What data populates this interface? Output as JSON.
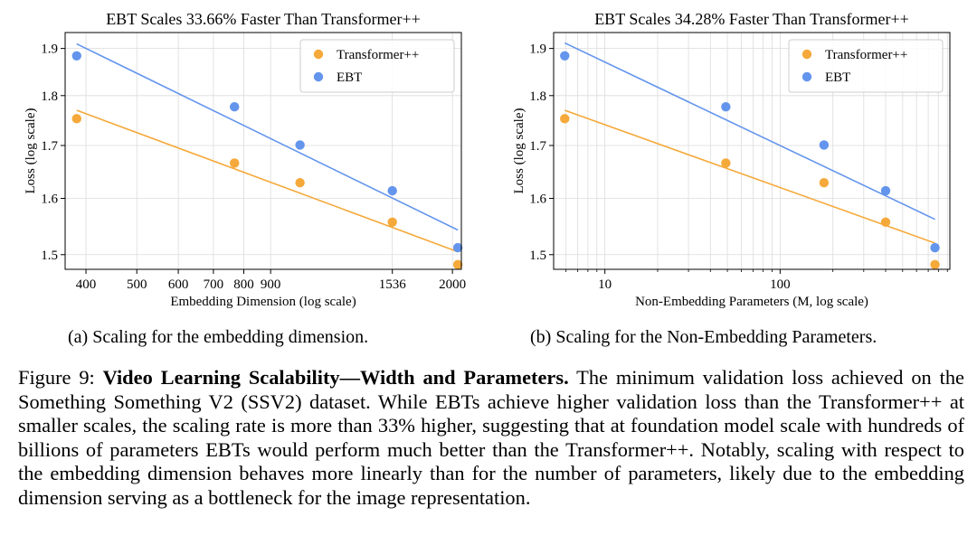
{
  "chart_data": [
    {
      "type": "scatter",
      "title": "EBT Scales 33.66% Faster Than Transformer++",
      "xlabel": "Embedding Dimension (log scale)",
      "ylabel": "Loss (log scale)",
      "xscale": "log",
      "yscale": "log",
      "xlim": [
        365,
        2080
      ],
      "ylim": [
        1.475,
        1.935
      ],
      "xticks": [
        400,
        500,
        600,
        700,
        800,
        900,
        1536,
        2000
      ],
      "xtick_labels": [
        "400",
        "500",
        "600",
        "700",
        "800",
        "900",
        "1536",
        "2000"
      ],
      "yticks": [
        1.5,
        1.6,
        1.7,
        1.8,
        1.9
      ],
      "ytick_labels": [
        "1.5",
        "1.6",
        "1.7",
        "1.8",
        "1.9"
      ],
      "grid": true,
      "legend_position": "top-right",
      "series": [
        {
          "name": "Transformer++",
          "color": "#F5A93A",
          "x": [
            384,
            768,
            1024,
            1536,
            2048
          ],
          "y": [
            1.753,
            1.666,
            1.629,
            1.557,
            1.483
          ],
          "fit": {
            "x": [
              384,
              2048
            ],
            "y": [
              1.77,
              1.505
            ]
          }
        },
        {
          "name": "EBT",
          "color": "#6495ED",
          "x": [
            384,
            768,
            1024,
            1536,
            2048
          ],
          "y": [
            1.884,
            1.777,
            1.701,
            1.614,
            1.512
          ],
          "fit": {
            "x": [
              384,
              2048
            ],
            "y": [
              1.91,
              1.543
            ]
          }
        }
      ]
    },
    {
      "type": "scatter",
      "title": "EBT Scales 34.28% Faster Than Transformer++",
      "xlabel": "Non-Embedding Parameters (M, log scale)",
      "ylabel": "Loss (log scale)",
      "xscale": "log",
      "yscale": "log",
      "xlim": [
        5.1,
        930
      ],
      "ylim": [
        1.475,
        1.935
      ],
      "xticks": [
        10,
        100
      ],
      "xtick_labels": [
        "10",
        "100"
      ],
      "yticks": [
        1.5,
        1.6,
        1.7,
        1.8,
        1.9
      ],
      "ytick_labels": [
        "1.5",
        "1.6",
        "1.7",
        "1.8",
        "1.9"
      ],
      "grid": true,
      "legend_position": "top-right",
      "series": [
        {
          "name": "Transformer++",
          "color": "#F5A93A",
          "x": [
            5.9,
            49,
            178,
            400,
            765
          ],
          "y": [
            1.753,
            1.666,
            1.629,
            1.557,
            1.483
          ],
          "fit": {
            "x": [
              5.9,
              765
            ],
            "y": [
              1.77,
              1.52
            ]
          }
        },
        {
          "name": "EBT",
          "color": "#6495ED",
          "x": [
            5.9,
            49,
            178,
            400,
            765
          ],
          "y": [
            1.884,
            1.777,
            1.701,
            1.614,
            1.512
          ],
          "fit": {
            "x": [
              5.9,
              765
            ],
            "y": [
              1.912,
              1.562
            ]
          }
        }
      ]
    }
  ],
  "subcaptions": {
    "a": "(a) Scaling for the embedding dimension.",
    "b": "(b) Scaling for the Non-Embedding Parameters."
  },
  "figure_caption": {
    "label": "Figure 9:",
    "title": "Video Learning Scalability—Width and Parameters.",
    "body": "The minimum validation loss achieved on the Something Something V2 (SSV2) dataset. While EBTs achieve higher validation loss than the Transformer++ at smaller scales, the scaling rate is more than 33% higher, suggesting that at foundation model scale with hundreds of billions of parameters EBTs would perform much better than the Transformer++. Notably, scaling with respect to the embedding dimension behaves more linearly than for the number of parameters, likely due to the embedding dimension serving as a bottleneck for the image representation."
  }
}
